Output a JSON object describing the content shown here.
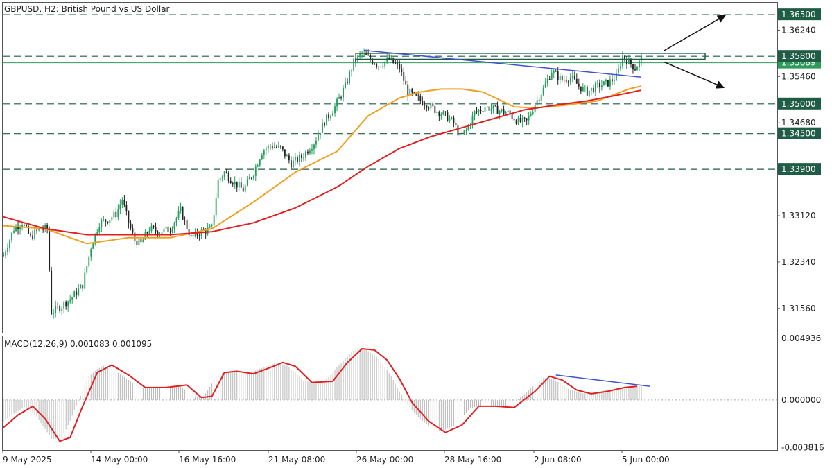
{
  "chart_data": [
    {
      "type": "candlestick",
      "title": "GBPUSD, H2:  British Pound vs US Dollar",
      "ylim": [
        1.3115,
        1.367
      ],
      "y_ticks": [
        "1.36240",
        "1.35460",
        "1.34680",
        "1.33120",
        "1.32340",
        "1.31560"
      ],
      "x_ticks": [
        "9 May 2025",
        "14 May 00:00",
        "16 May 16:00",
        "21 May 08:00",
        "26 May 00:00",
        "28 May 16:00",
        "2 Jun 08:00",
        "5 Jun 00:00"
      ],
      "levels": [
        {
          "value": 1.365,
          "label": "1.36500"
        },
        {
          "value": 1.358,
          "label": "1.35800"
        },
        {
          "value": 1.35,
          "label": "1.35000"
        },
        {
          "value": 1.345,
          "label": "1.34500"
        },
        {
          "value": 1.339,
          "label": "1.33900"
        }
      ],
      "current_price": {
        "value": 1.3569,
        "label": "1.35689"
      },
      "close_path": [
        [
          0,
          1.3245
        ],
        [
          5,
          1.329
        ],
        [
          9,
          1.33
        ],
        [
          13,
          1.3275
        ],
        [
          17,
          1.329
        ],
        [
          21,
          1.329
        ],
        [
          23,
          1.315
        ],
        [
          28,
          1.316
        ],
        [
          33,
          1.3175
        ],
        [
          38,
          1.3195
        ],
        [
          42,
          1.326
        ],
        [
          46,
          1.33
        ],
        [
          50,
          1.3305
        ],
        [
          54,
          1.3315
        ],
        [
          57,
          1.334
        ],
        [
          60,
          1.33
        ],
        [
          63,
          1.327
        ],
        [
          66,
          1.3265
        ],
        [
          70,
          1.329
        ],
        [
          75,
          1.3285
        ],
        [
          80,
          1.329
        ],
        [
          85,
          1.332
        ],
        [
          90,
          1.3275
        ],
        [
          95,
          1.3285
        ],
        [
          100,
          1.329
        ],
        [
          103,
          1.337
        ],
        [
          106,
          1.3385
        ],
        [
          110,
          1.337
        ],
        [
          115,
          1.3355
        ],
        [
          120,
          1.3385
        ],
        [
          124,
          1.342
        ],
        [
          128,
          1.343
        ],
        [
          133,
          1.3425
        ],
        [
          138,
          1.34
        ],
        [
          143,
          1.341
        ],
        [
          149,
          1.3435
        ],
        [
          154,
          1.347
        ],
        [
          159,
          1.3495
        ],
        [
          164,
          1.353
        ],
        [
          168,
          1.357
        ],
        [
          172,
          1.3585
        ],
        [
          176,
          1.3575
        ],
        [
          180,
          1.3565
        ],
        [
          185,
          1.3575
        ],
        [
          190,
          1.356
        ],
        [
          194,
          1.352
        ],
        [
          198,
          1.351
        ],
        [
          203,
          1.35
        ],
        [
          207,
          1.349
        ],
        [
          212,
          1.348
        ],
        [
          216,
          1.3468
        ],
        [
          219,
          1.3445
        ],
        [
          222,
          1.3455
        ],
        [
          226,
          1.3485
        ],
        [
          231,
          1.3495
        ],
        [
          236,
          1.349
        ],
        [
          242,
          1.3485
        ],
        [
          247,
          1.347
        ],
        [
          251,
          1.347
        ],
        [
          255,
          1.35
        ],
        [
          259,
          1.3525
        ],
        [
          263,
          1.3555
        ],
        [
          268,
          1.354
        ],
        [
          272,
          1.3545
        ],
        [
          276,
          1.353
        ],
        [
          280,
          1.352
        ],
        [
          285,
          1.353
        ],
        [
          290,
          1.3535
        ],
        [
          294,
          1.3545
        ],
        [
          297,
          1.358
        ],
        [
          300,
          1.357
        ],
        [
          303,
          1.356
        ],
        [
          306,
          1.3575
        ]
      ],
      "indicators": [
        {
          "name": "",
          "color": "#f0a020",
          "path": [
            [
              0,
              1.3295
            ],
            [
              20,
              1.329
            ],
            [
              40,
              1.3265
            ],
            [
              60,
              1.3275
            ],
            [
              80,
              1.3275
            ],
            [
              100,
              1.329
            ],
            [
              120,
              1.3335
            ],
            [
              140,
              1.3385
            ],
            [
              160,
              1.342
            ],
            [
              175,
              1.348
            ],
            [
              190,
              1.351
            ],
            [
              200,
              1.352
            ],
            [
              210,
              1.3525
            ],
            [
              220,
              1.3525
            ],
            [
              230,
              1.352
            ],
            [
              245,
              1.3495
            ],
            [
              255,
              1.3493
            ],
            [
              270,
              1.3498
            ],
            [
              285,
              1.3505
            ],
            [
              300,
              1.3525
            ],
            [
              306,
              1.353
            ]
          ]
        },
        {
          "name": "",
          "color": "#e02020",
          "path": [
            [
              0,
              1.331
            ],
            [
              20,
              1.329
            ],
            [
              40,
              1.328
            ],
            [
              60,
              1.328
            ],
            [
              80,
              1.328
            ],
            [
              100,
              1.3285
            ],
            [
              120,
              1.33
            ],
            [
              140,
              1.3325
            ],
            [
              160,
              1.336
            ],
            [
              175,
              1.3395
            ],
            [
              190,
              1.3425
            ],
            [
              205,
              1.3445
            ],
            [
              220,
              1.346
            ],
            [
              235,
              1.3475
            ],
            [
              250,
              1.349
            ],
            [
              265,
              1.3498
            ],
            [
              280,
              1.3505
            ],
            [
              295,
              1.3515
            ],
            [
              306,
              1.3523
            ]
          ]
        }
      ],
      "annotations": {
        "resistance_box": [
          1.3575,
          1.3585
        ],
        "descending_trendline": [
          [
            173,
            1.359
          ],
          [
            306,
            1.3545
          ]
        ],
        "arrow_up_target": 1.365,
        "arrow_down_target": 1.3511
      }
    },
    {
      "type": "macd",
      "label": "MACD(12,26,9) 0.001083 0.001095",
      "ylim": [
        -0.004,
        0.0051
      ],
      "y_ticks": [
        "0.004936",
        "0.000000",
        "-0.003816"
      ],
      "signal": {
        "color": "#e02020",
        "path": [
          [
            0,
            -0.0022
          ],
          [
            7,
            -0.0012
          ],
          [
            14,
            -0.0005
          ],
          [
            20,
            -0.0015
          ],
          [
            27,
            -0.0033
          ],
          [
            32,
            -0.003
          ],
          [
            38,
            -0.0005
          ],
          [
            45,
            0.0022
          ],
          [
            52,
            0.0028
          ],
          [
            60,
            0.002
          ],
          [
            68,
            0.001
          ],
          [
            78,
            0.001
          ],
          [
            88,
            0.0012
          ],
          [
            95,
            0.0002
          ],
          [
            100,
            0.0003
          ],
          [
            106,
            0.0022
          ],
          [
            112,
            0.0023
          ],
          [
            120,
            0.0021
          ],
          [
            128,
            0.0026
          ],
          [
            134,
            0.003
          ],
          [
            140,
            0.0027
          ],
          [
            148,
            0.0014
          ],
          [
            158,
            0.0015
          ],
          [
            165,
            0.003
          ],
          [
            172,
            0.0041
          ],
          [
            178,
            0.004
          ],
          [
            184,
            0.0032
          ],
          [
            190,
            0.0017
          ],
          [
            196,
            -0.0002
          ],
          [
            204,
            -0.0017
          ],
          [
            212,
            -0.0026
          ],
          [
            220,
            -0.002
          ],
          [
            228,
            -0.0005
          ],
          [
            236,
            -0.0005
          ],
          [
            245,
            -0.0006
          ],
          [
            255,
            0.0007
          ],
          [
            262,
            0.0019
          ],
          [
            268,
            0.0016
          ],
          [
            275,
            0.0008
          ],
          [
            282,
            0.0005
          ],
          [
            290,
            0.0007
          ],
          [
            298,
            0.001
          ],
          [
            304,
            0.0011
          ]
        ]
      },
      "histogram_color": "#b8b8b8",
      "trendline": [
        [
          265,
          0.002
        ],
        [
          310,
          0.0011
        ]
      ]
    }
  ]
}
